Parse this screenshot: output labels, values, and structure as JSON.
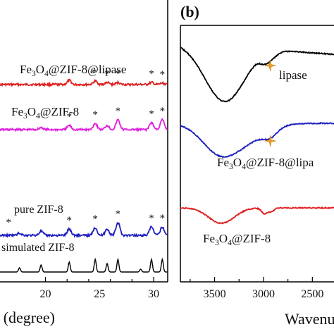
{
  "chart_data": [
    {
      "type": "line",
      "panel_label": "",
      "xlabel": "(degree)",
      "ylabel": "",
      "xlim": [
        15.8,
        31.3
      ],
      "x_ticks": [
        20,
        22,
        24,
        26,
        28,
        30
      ],
      "x_tick_labels": [
        "20",
        "25",
        "30"
      ],
      "x_tick_label_values": [
        20,
        25,
        30
      ],
      "y_unit": "arbitrary (stacked offset)",
      "series": [
        {
          "name": "Fe3O4@ZIF-8@lipase",
          "label_parts": [
            "Fe",
            "3",
            "O",
            "4",
            "@ZIF-8@lipase"
          ],
          "color": "#e02020",
          "baseline": 120,
          "peaks": [
            [
              22.2,
              6
            ],
            [
              24.6,
              5
            ],
            [
              25.7,
              3
            ],
            [
              26.7,
              3
            ],
            [
              29.8,
              3
            ],
            [
              30.8,
              2
            ]
          ],
          "markers": [
            24.5,
            25.7,
            26.7,
            29.8,
            30.8
          ]
        },
        {
          "name": "Fe3O4@ZIF-8",
          "label_parts": [
            "Fe",
            "3",
            "O",
            "4",
            "@ZIF-8"
          ],
          "color": "#e020e0",
          "baseline": 184,
          "peaks": [
            [
              19.6,
              3
            ],
            [
              22.2,
              6
            ],
            [
              24.6,
              9
            ],
            [
              25.7,
              6
            ],
            [
              26.7,
              14
            ],
            [
              29.8,
              10
            ],
            [
              30.8,
              14
            ]
          ],
          "markers": [
            22.2,
            24.6,
            26.7,
            29.8,
            30.8
          ]
        },
        {
          "name": "pure ZIF-8",
          "label_parts": [
            "pure ZIF-8"
          ],
          "color": "#2020c0",
          "baseline": 334,
          "peaks": [
            [
              17.6,
              3
            ],
            [
              19.6,
              6
            ],
            [
              22.2,
              9
            ],
            [
              24.6,
              11
            ],
            [
              25.7,
              9
            ],
            [
              26.7,
              18
            ],
            [
              29.8,
              12
            ],
            [
              30.8,
              12
            ]
          ],
          "markers": [
            16.6,
            22.2,
            24.6,
            26.7,
            29.8,
            30.8
          ]
        },
        {
          "name": "simulated ZIF-8",
          "label_parts": [
            "simulated ZIF-8"
          ],
          "color": "#000000",
          "baseline": 386,
          "peaks": [
            [
              17.6,
              6
            ],
            [
              19.6,
              10
            ],
            [
              22.2,
              14
            ],
            [
              24.6,
              18
            ],
            [
              25.7,
              12
            ],
            [
              26.7,
              18
            ],
            [
              28.8,
              4
            ],
            [
              29.8,
              18
            ],
            [
              30.8,
              18
            ]
          ],
          "markers": []
        }
      ],
      "marker_symbol": "*"
    },
    {
      "type": "line",
      "panel_label": "(b)",
      "xlabel": "Wavenu",
      "ylabel": "",
      "xlim": [
        3850,
        2250
      ],
      "x_ticks": [
        3500,
        3000,
        2500
      ],
      "x_tick_labels": [
        "3500",
        "3000",
        "2500"
      ],
      "y_unit": "arbitrary (stacked offset)",
      "series": [
        {
          "name": "lipase",
          "label_parts": [
            "lipase"
          ],
          "color": "#000000",
          "baseline": 70,
          "dips": [
            [
              3400,
              78,
              200
            ],
            [
              3000,
              6,
              40
            ],
            [
              2930,
              10,
              60
            ]
          ],
          "marker": 2930
        },
        {
          "name": "Fe3O4@ZIF-8@lipase",
          "label_parts": [
            "Fe",
            "3",
            "O",
            "4",
            "@ZIF-8@lipa"
          ],
          "color": "#2020c0",
          "baseline": 175,
          "dips": [
            [
              3450,
              40,
              180
            ],
            [
              3150,
              20,
              200
            ],
            [
              2930,
              10,
              70
            ]
          ],
          "marker": 2930
        },
        {
          "name": "Fe3O4@ZIF-8",
          "label_parts": [
            "Fe",
            "3",
            "O",
            "4",
            "@ZIF-8"
          ],
          "color": "#e02020",
          "baseline": 295,
          "dips": [
            [
              3430,
              22,
              130
            ],
            [
              2990,
              8,
              30
            ],
            [
              2920,
              5,
              30
            ]
          ],
          "marker": null
        }
      ]
    }
  ]
}
